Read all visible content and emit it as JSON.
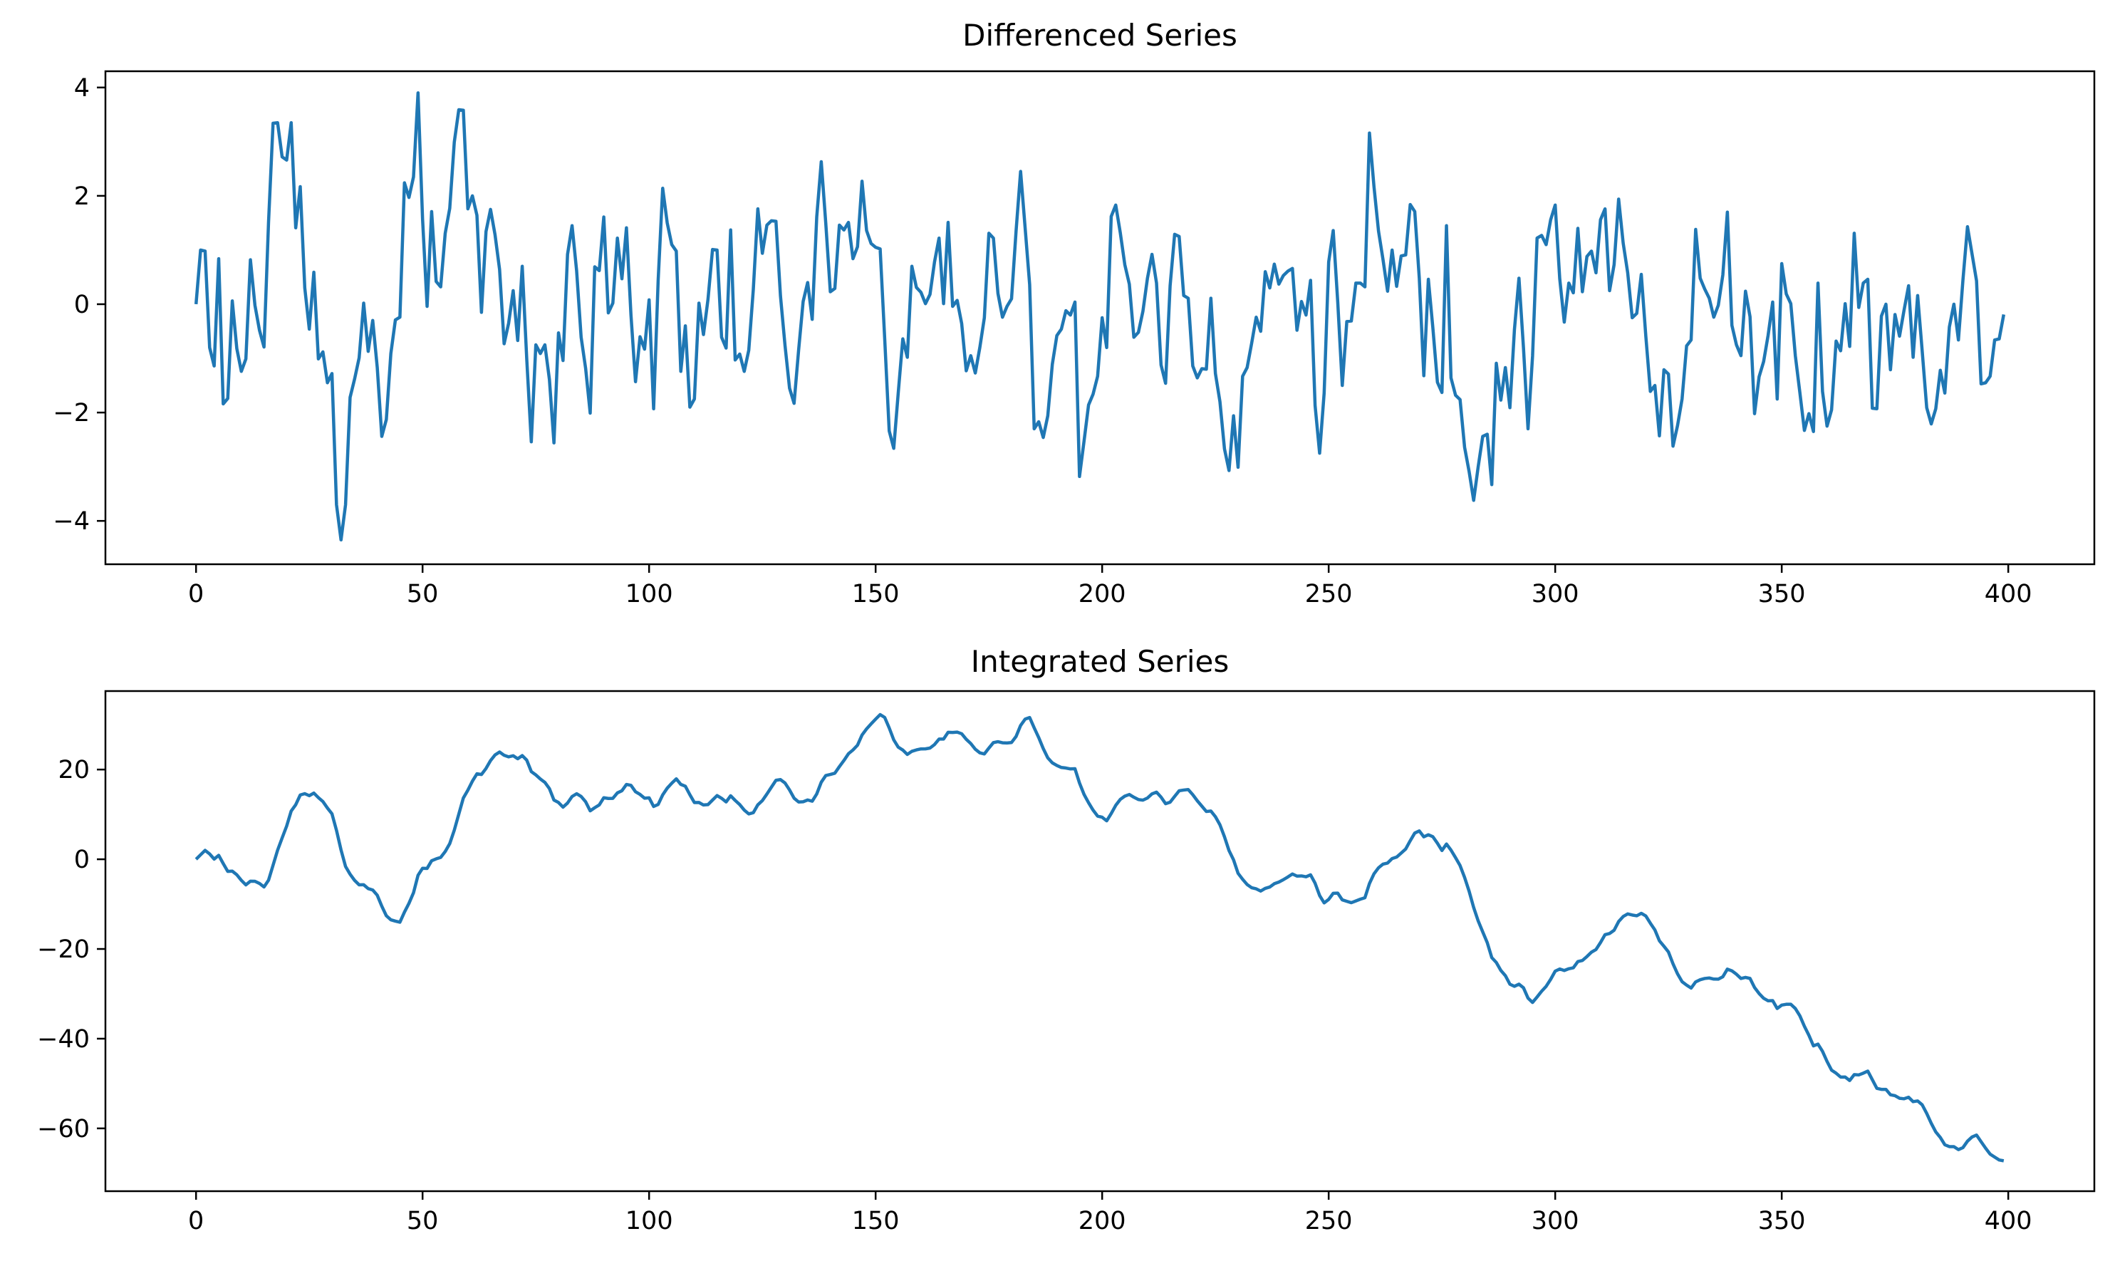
{
  "chart_data": [
    {
      "type": "line",
      "title": "Differenced Series",
      "xlabel": "",
      "ylabel": "",
      "xlim": [
        -20,
        419
      ],
      "ylim": [
        -4.8,
        4.3
      ],
      "xticks": [
        0,
        50,
        100,
        150,
        200,
        250,
        300,
        350,
        400
      ],
      "yticks": [
        -4,
        -2,
        0,
        2,
        4
      ],
      "grid": false,
      "color": "#1f77b4",
      "series": [
        {
          "x_start": 0,
          "x_step": 1,
          "values": [
            0.0,
            1.0,
            0.98,
            -0.8,
            -1.14,
            0.84,
            -1.84,
            -1.74,
            0.06,
            -0.82,
            -1.24,
            -1.01,
            0.82,
            -0.02,
            -0.48,
            -0.79,
            1.51,
            3.34,
            3.35,
            2.72,
            2.66,
            3.35,
            1.41,
            2.17,
            0.3,
            -0.46,
            0.59,
            -1.01,
            -0.88,
            -1.45,
            -1.28,
            -3.7,
            -4.35,
            -3.7,
            -1.72,
            -1.38,
            -0.99,
            0.02,
            -0.87,
            -0.3,
            -1.17,
            -2.44,
            -2.13,
            -0.91,
            -0.29,
            -0.24,
            2.24,
            1.97,
            2.35,
            3.9,
            1.57,
            -0.04,
            1.71,
            0.42,
            0.32,
            1.31,
            1.77,
            2.99,
            3.59,
            3.58,
            1.76,
            2.0,
            1.64,
            -0.15,
            1.34,
            1.75,
            1.28,
            0.64,
            -0.73,
            -0.35,
            0.25,
            -0.67,
            0.7,
            -1.02,
            -2.54,
            -0.75,
            -0.91,
            -0.75,
            -1.39,
            -2.56,
            -0.53,
            -1.04,
            0.92,
            1.45,
            0.62,
            -0.61,
            -1.19,
            -2.01,
            0.69,
            0.62,
            1.61,
            -0.16,
            0.02,
            1.22,
            0.47,
            1.41,
            -0.2,
            -1.43,
            -0.6,
            -0.83,
            0.08,
            -1.93,
            0.44,
            2.14,
            1.5,
            1.1,
            0.98,
            -1.24,
            -0.4,
            -1.9,
            -1.75,
            0.02,
            -0.56,
            0.09,
            1.01,
            1.0,
            -0.61,
            -0.81,
            1.37,
            -1.03,
            -0.92,
            -1.24,
            -0.85,
            0.27,
            1.76,
            0.94,
            1.46,
            1.54,
            1.53,
            0.15,
            -0.76,
            -1.55,
            -1.83,
            -0.85,
            0.05,
            0.4,
            -0.28,
            1.61,
            2.63,
            1.49,
            0.23,
            0.29,
            1.46,
            1.37,
            1.51,
            0.84,
            1.06,
            2.27,
            1.36,
            1.12,
            1.05,
            1.02,
            -0.63,
            -2.34,
            -2.66,
            -1.63,
            -0.64,
            -0.98,
            0.7,
            0.31,
            0.22,
            0.01,
            0.18,
            0.78,
            1.22,
            0.01,
            1.51,
            -0.04,
            0.07,
            -0.36,
            -1.23,
            -0.95,
            -1.27,
            -0.8,
            -0.25,
            1.31,
            1.22,
            0.2,
            -0.24,
            -0.04,
            0.1,
            1.35,
            2.45,
            1.41,
            0.36,
            -2.3,
            -2.17,
            -2.46,
            -2.06,
            -1.11,
            -0.58,
            -0.46,
            -0.12,
            -0.2,
            0.04,
            -3.18,
            -2.53,
            -1.86,
            -1.66,
            -1.33,
            -0.25,
            -0.8,
            1.62,
            1.83,
            1.32,
            0.73,
            0.37,
            -0.61,
            -0.52,
            -0.13,
            0.48,
            0.92,
            0.39,
            -1.12,
            -1.46,
            0.34,
            1.29,
            1.25,
            0.16,
            0.11,
            -1.14,
            -1.36,
            -1.19,
            -1.2,
            0.11,
            -1.28,
            -1.8,
            -2.67,
            -3.07,
            -2.06,
            -3.01,
            -1.33,
            -1.17,
            -0.72,
            -0.24,
            -0.5,
            0.6,
            0.3,
            0.74,
            0.37,
            0.53,
            0.61,
            0.66,
            -0.48,
            0.05,
            -0.2,
            0.44,
            -1.87,
            -2.75,
            -1.64,
            0.78,
            1.36,
            0.04,
            -1.5,
            -0.32,
            -0.31,
            0.39,
            0.39,
            0.32,
            3.16,
            2.17,
            1.35,
            0.82,
            0.24,
            1.0,
            0.33,
            0.89,
            0.91,
            1.84,
            1.71,
            0.48,
            -1.32,
            0.46,
            -0.44,
            -1.44,
            -1.63,
            1.45,
            -1.36,
            -1.68,
            -1.76,
            -2.64,
            -3.09,
            -3.62,
            -3.0,
            -2.44,
            -2.4,
            -3.33,
            -1.09,
            -1.77,
            -1.17,
            -1.91,
            -0.47,
            0.48,
            -0.81,
            -2.3,
            -0.96,
            1.22,
            1.27,
            1.1,
            1.56,
            1.83,
            0.47,
            -0.33,
            0.39,
            0.21,
            1.4,
            0.23,
            0.88,
            0.98,
            0.58,
            1.56,
            1.76,
            0.25,
            0.73,
            1.94,
            1.13,
            0.58,
            -0.25,
            -0.17,
            0.55,
            -0.59,
            -1.61,
            -1.5,
            -2.43,
            -1.21,
            -1.29,
            -2.62,
            -2.24,
            -1.75,
            -0.77,
            -0.66,
            1.38,
            0.48,
            0.28,
            0.11,
            -0.24,
            -0.02,
            0.54,
            1.7,
            -0.39,
            -0.75,
            -0.95,
            0.24,
            -0.23,
            -2.02,
            -1.34,
            -1.06,
            -0.57,
            0.04,
            -1.75,
            0.75,
            0.19,
            0.01,
            -0.95,
            -1.63,
            -2.33,
            -2.02,
            -2.35,
            0.39,
            -1.61,
            -2.25,
            -1.95,
            -0.68,
            -0.86,
            0.01,
            -0.78,
            1.31,
            -0.06,
            0.39,
            0.46,
            -1.92,
            -1.93,
            -0.22,
            0.0,
            -1.21,
            -0.19,
            -0.59,
            -0.11,
            0.34,
            -0.98,
            0.16,
            -0.86,
            -1.91,
            -2.21,
            -1.93,
            -1.22,
            -1.64,
            -0.42,
            0.0,
            -0.66,
            0.45,
            1.43,
            0.93,
            0.43,
            -1.47,
            -1.45,
            -1.33,
            -0.66,
            -0.64,
            -0.19
          ]
        }
      ]
    },
    {
      "type": "line",
      "title": "Integrated Series",
      "xlabel": "",
      "ylabel": "",
      "xlim": [
        -20,
        419
      ],
      "ylim": [
        -74,
        37.5
      ],
      "xticks": [
        0,
        50,
        100,
        150,
        200,
        250,
        300,
        350,
        400
      ],
      "yticks": [
        -60,
        -40,
        -20,
        0,
        20
      ],
      "grid": false,
      "color": "#1f77b4",
      "series": [
        {
          "x_start": 0,
          "x_step": 1,
          "values": [
            0.0,
            1.0,
            1.98,
            1.18,
            0.04,
            0.88,
            -0.96,
            -2.7,
            -2.64,
            -3.46,
            -4.7,
            -5.71,
            -4.89,
            -4.91,
            -5.39,
            -6.18,
            -4.67,
            -1.33,
            2.02,
            4.74,
            7.4,
            10.75,
            12.16,
            14.33,
            14.63,
            14.17,
            14.76,
            13.75,
            12.87,
            11.42,
            10.14,
            6.44,
            2.09,
            -1.61,
            -3.33,
            -4.71,
            -5.7,
            -5.68,
            -6.55,
            -6.85,
            -8.02,
            -10.46,
            -12.59,
            -13.5,
            -13.79,
            -14.03,
            -11.79,
            -9.82,
            -7.47,
            -3.57,
            -2.0,
            -2.04,
            -0.33,
            0.09,
            0.41,
            1.72,
            3.49,
            6.48,
            10.07,
            13.65,
            15.41,
            17.41,
            19.05,
            18.9,
            20.24,
            21.99,
            23.27,
            23.91,
            23.18,
            22.83,
            23.08,
            22.41,
            23.11,
            22.09,
            19.55,
            18.8,
            17.89,
            17.14,
            15.75,
            13.19,
            12.66,
            11.62,
            12.54,
            13.99,
            14.61,
            14.0,
            12.81,
            10.8,
            11.49,
            12.11,
            13.72,
            13.56,
            13.58,
            14.8,
            15.27,
            16.68,
            16.48,
            15.05,
            14.45,
            13.62,
            13.7,
            11.77,
            12.21,
            14.35,
            15.85,
            16.95,
            17.93,
            16.69,
            16.29,
            14.39,
            12.64,
            12.66,
            12.1,
            12.19,
            13.2,
            14.2,
            13.59,
            12.78,
            14.15,
            13.12,
            12.2,
            10.96,
            10.11,
            10.38,
            12.14,
            13.08,
            14.54,
            16.08,
            17.61,
            17.76,
            17.0,
            15.45,
            13.62,
            12.77,
            12.82,
            13.22,
            12.94,
            14.55,
            17.18,
            18.67,
            18.9,
            19.19,
            20.65,
            22.02,
            23.53,
            24.37,
            25.43,
            27.7,
            29.06,
            30.18,
            31.23,
            32.25,
            31.62,
            29.28,
            26.62,
            24.99,
            24.35,
            23.37,
            24.07,
            24.38,
            24.6,
            24.61,
            24.79,
            25.57,
            26.79,
            26.8,
            28.31,
            28.27,
            28.34,
            27.98,
            26.75,
            25.8,
            24.53,
            23.73,
            23.48,
            24.79,
            26.01,
            26.21,
            25.97,
            25.93,
            26.03,
            27.38,
            29.83,
            31.24,
            31.6,
            29.3,
            27.13,
            24.67,
            22.61,
            21.5,
            20.92,
            20.46,
            20.34,
            20.14,
            20.18,
            17.0,
            14.47,
            12.61,
            10.95,
            9.62,
            9.37,
            8.57,
            10.19,
            12.02,
            13.34,
            14.07,
            14.44,
            13.83,
            13.31,
            13.18,
            13.66,
            14.58,
            14.97,
            13.85,
            12.39,
            12.73,
            14.02,
            15.27,
            15.43,
            15.54,
            14.4,
            13.04,
            11.85,
            10.65,
            10.76,
            9.48,
            7.68,
            5.01,
            1.94,
            -0.12,
            -3.13,
            -4.46,
            -5.63,
            -6.35,
            -6.59,
            -7.09,
            -6.49,
            -6.19,
            -5.45,
            -5.08,
            -4.55,
            -3.94,
            -3.28,
            -3.76,
            -3.71,
            -3.91,
            -3.47,
            -5.34,
            -8.09,
            -9.73,
            -8.95,
            -7.59,
            -7.55,
            -9.05,
            -9.37,
            -9.68,
            -9.29,
            -8.9,
            -8.58,
            -5.42,
            -3.25,
            -1.9,
            -1.08,
            -0.84,
            0.16,
            0.49,
            1.38,
            2.29,
            4.13,
            5.84,
            6.32,
            5.0,
            5.46,
            5.02,
            3.58,
            1.95,
            3.4,
            2.04,
            0.36,
            -1.4,
            -4.04,
            -7.13,
            -10.75,
            -13.75,
            -16.19,
            -18.59,
            -21.92,
            -23.01,
            -24.78,
            -25.95,
            -27.86,
            -28.33,
            -27.85,
            -28.66,
            -30.96,
            -31.92,
            -30.7,
            -29.43,
            -28.33,
            -26.77,
            -24.94,
            -24.47,
            -24.8,
            -24.41,
            -24.2,
            -22.8,
            -22.57,
            -21.69,
            -20.71,
            -20.13,
            -18.57,
            -16.81,
            -16.56,
            -15.83,
            -13.89,
            -12.76,
            -12.18,
            -12.43,
            -12.6,
            -12.05,
            -12.64,
            -14.25,
            -15.75,
            -18.18,
            -19.39,
            -20.68,
            -23.3,
            -25.54,
            -27.29,
            -28.06,
            -28.72,
            -27.34,
            -26.86,
            -26.58,
            -26.47,
            -26.71,
            -26.73,
            -26.19,
            -24.49,
            -24.88,
            -25.63,
            -26.58,
            -26.34,
            -26.57,
            -28.59,
            -29.93,
            -30.99,
            -31.56,
            -31.52,
            -33.27,
            -32.52,
            -32.33,
            -32.32,
            -33.27,
            -34.9,
            -37.23,
            -39.25,
            -41.6,
            -41.21,
            -42.82,
            -45.07,
            -47.02,
            -47.7,
            -48.56,
            -48.55,
            -49.33,
            -48.02,
            -48.08,
            -47.69,
            -47.23,
            -49.15,
            -51.08,
            -51.3,
            -51.3,
            -52.51,
            -52.7,
            -53.29,
            -53.4,
            -53.06,
            -54.04,
            -53.88,
            -54.74,
            -56.65,
            -58.86,
            -60.79,
            -62.01,
            -63.65,
            -64.07,
            -64.07,
            -64.73,
            -64.28,
            -62.85,
            -61.92,
            -61.49,
            -62.96,
            -64.41,
            -65.74,
            -66.4,
            -67.04,
            -67.23
          ]
        }
      ]
    }
  ]
}
